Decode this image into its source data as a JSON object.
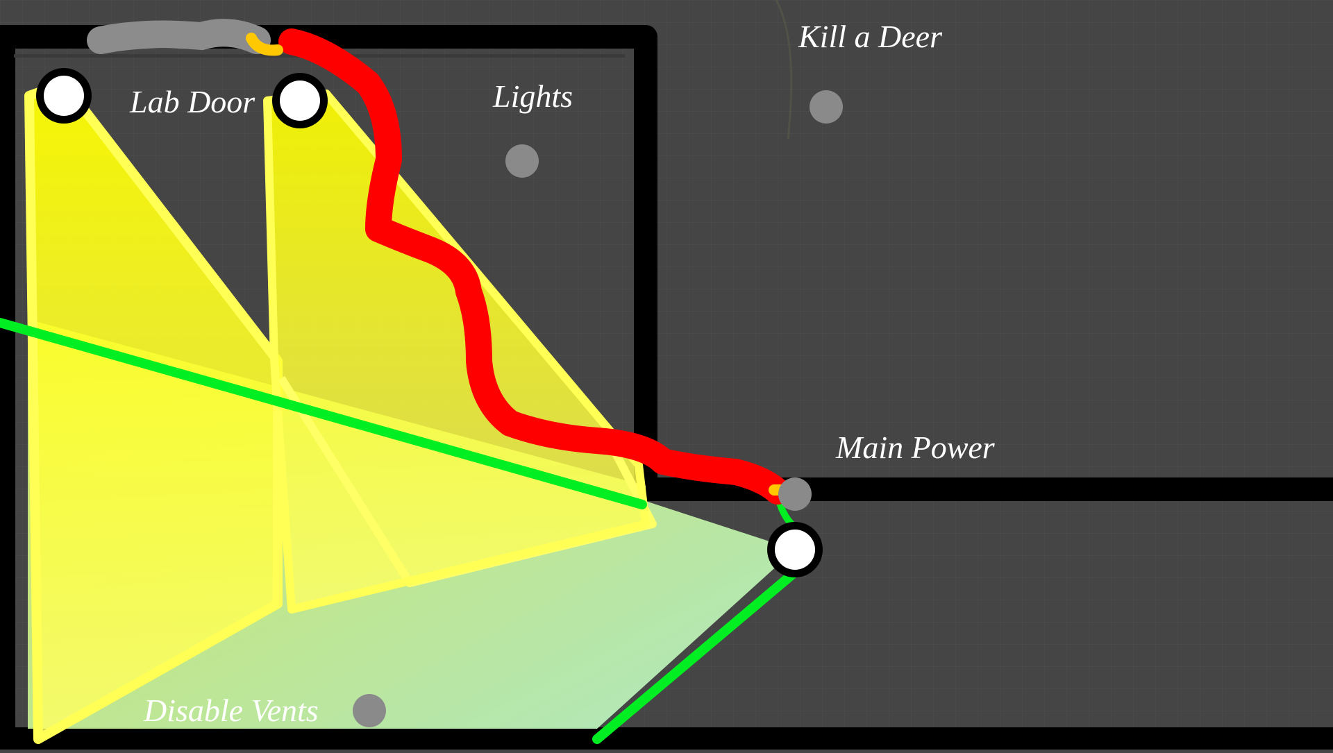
{
  "title": "",
  "labels": {
    "kill_a_deer": "Kill a Deer",
    "lab_door": "Lab Door",
    "lights": "Lights",
    "main_power": "Main Power",
    "disable_vents": "Disable Vents"
  },
  "colors": {
    "background": "#454545",
    "grid_line": "#4f4f4f",
    "wall": "#000000",
    "vision_cone": "#ffff00",
    "player_path": "#ff0000",
    "sight_line": "#00ee22",
    "task_marker": "#8a8a8a",
    "camera_node": "#ffffff",
    "path_endpoint": "#ffc800",
    "text": "#ffffff"
  },
  "map": {
    "tasks": [
      "kill_a_deer",
      "lab_door",
      "lights",
      "main_power",
      "disable_vents"
    ],
    "camera_count": 3,
    "icons": [
      "camera-node-icon",
      "task-marker-icon",
      "player-path-line",
      "sight-line",
      "vision-cone"
    ]
  }
}
